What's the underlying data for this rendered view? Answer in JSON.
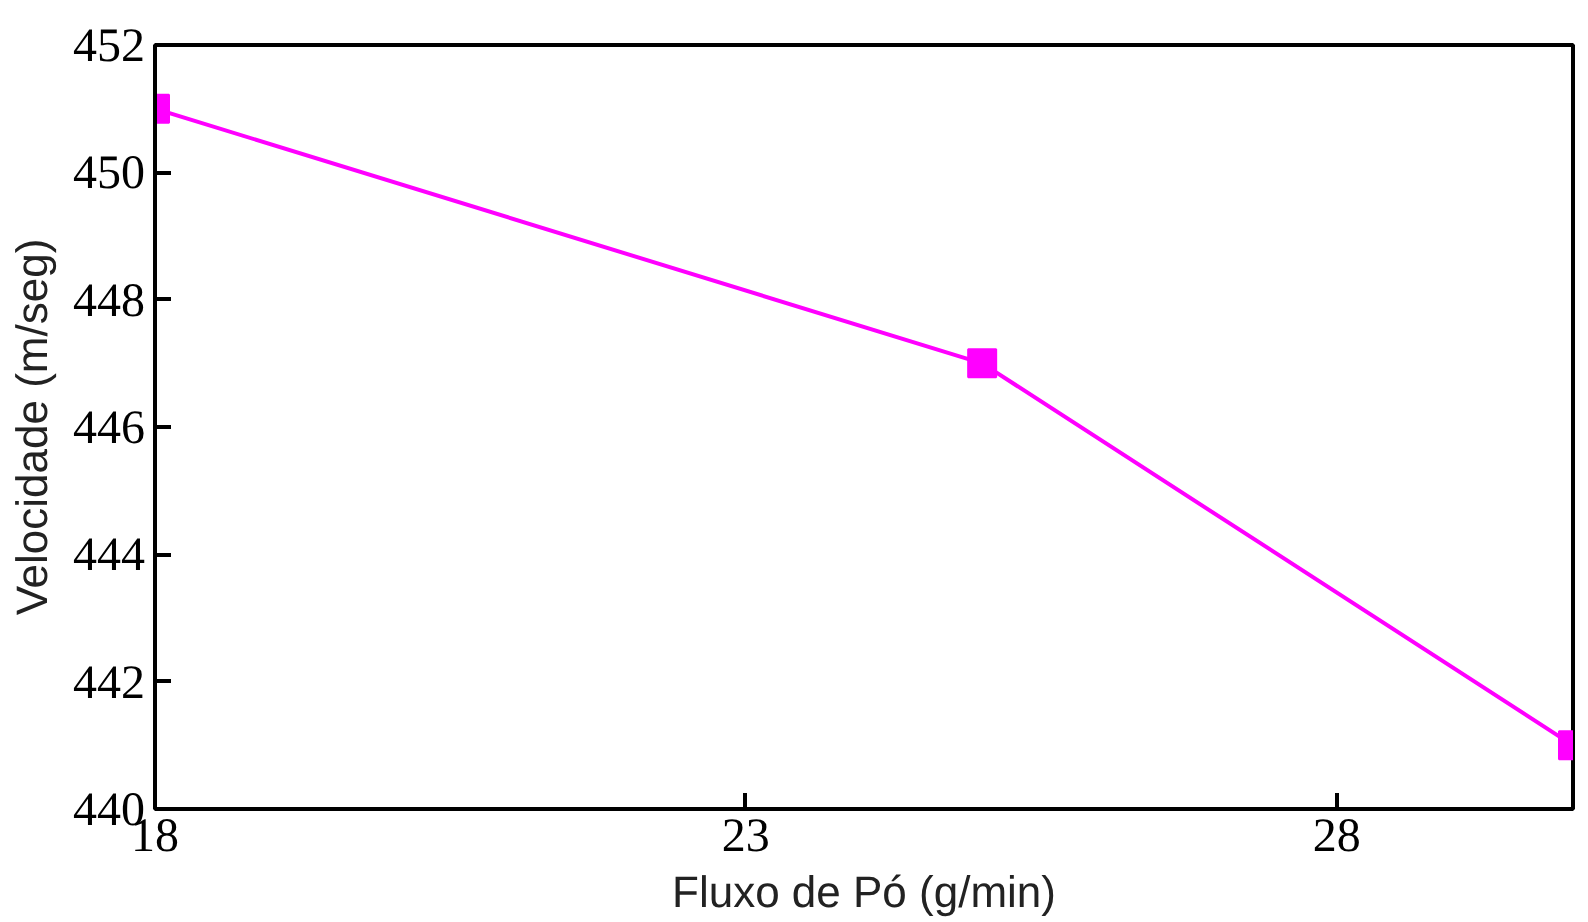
{
  "chart_data": {
    "type": "line",
    "xlabel": "Fluxo de Pó (g/min)",
    "ylabel": "Velocidade (m/seg)",
    "x": [
      18,
      25,
      30
    ],
    "series": [
      {
        "color": "#ff00ff",
        "values": [
          451,
          447,
          441
        ]
      }
    ],
    "xlim": [
      18,
      30
    ],
    "xticks": [
      18,
      23,
      28
    ],
    "ylim": [
      440,
      452
    ],
    "yticks": [
      440,
      442,
      444,
      446,
      448,
      450,
      452
    ],
    "grid": false,
    "marker": "square",
    "line_style": "solid"
  }
}
